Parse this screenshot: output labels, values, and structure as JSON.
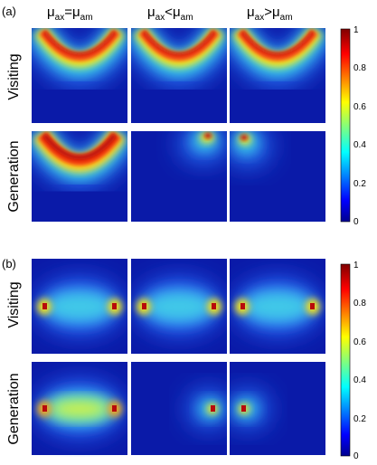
{
  "figure": {
    "panels": [
      {
        "label": "(a)",
        "columns": [
          {
            "mu": "μ",
            "sub1": "ax",
            "op": "=",
            "sub2": "am"
          },
          {
            "mu": "μ",
            "sub1": "ax",
            "op": "<",
            "sub2": "am"
          },
          {
            "mu": "μ",
            "sub1": "ax",
            "op": ">",
            "sub2": "am"
          }
        ],
        "rows": [
          "Visiting",
          "Generation"
        ],
        "colorbar": {
          "ticks": [
            "1",
            "0.8",
            "0.6",
            "0.4",
            "0.2",
            "0"
          ],
          "range": [
            0,
            1
          ]
        }
      },
      {
        "label": "(b)",
        "rows": [
          "Visiting",
          "Generation"
        ],
        "colorbar": {
          "ticks": [
            "1",
            "0.8",
            "0.6",
            "0.4",
            "0.2",
            "0"
          ],
          "range": [
            0,
            1
          ]
        }
      }
    ],
    "colormap": "jet",
    "colors": {
      "background_map": "#0a1aa8"
    }
  }
}
